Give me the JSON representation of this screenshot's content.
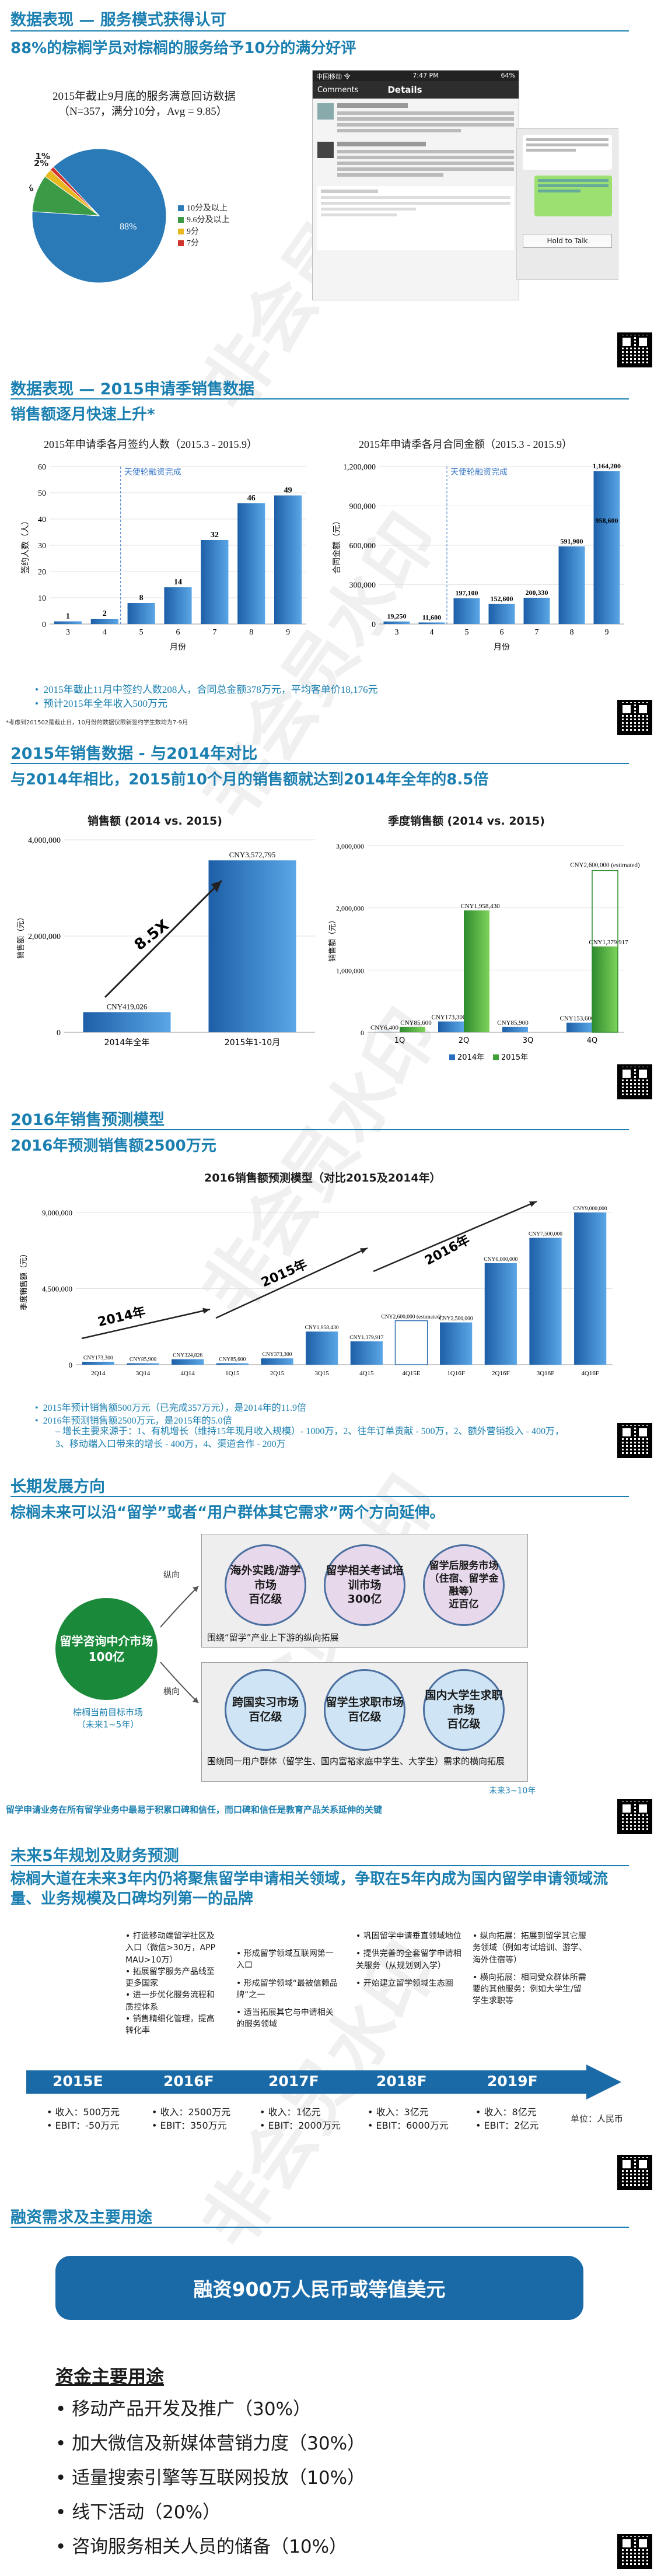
{
  "watermark": "非会员水印",
  "s1": {
    "title": "数据表现 — 服务模式获得认可",
    "subtitle": "88%的棕榈学员对棕榈的服务给予10分的满分好评",
    "pie": {
      "caption1": "2015年截止9月底的服务满意回访数据",
      "caption2": "（N=357，满分10分，Avg = 9.85）",
      "labels": [
        "88%",
        "9%",
        "2%",
        "1%"
      ],
      "legend": [
        "10分及以上",
        "9.6分及以上",
        "9分",
        "7分"
      ],
      "colors": [
        "#2a7ab8",
        "#3a9a45",
        "#e8b820",
        "#d0342c"
      ]
    },
    "phone": {
      "status_carrier": "中国移动 令",
      "status_time": "7:47 PM",
      "status_battery": "64%",
      "back": "Comments",
      "header": "Details",
      "reply_label": "Hold to Talk"
    }
  },
  "s2": {
    "title": "数据表现 — 2015申请季销售数据",
    "subtitle": "销售额逐月快速上升*",
    "chart1_title": "2015年申请季各月签约人数（2015.3 - 2015.9）",
    "chart2_title": "2015年申请季各月合同金额（2015.3 - 2015.9）",
    "marker": "天使轮融资完成",
    "ylabel1": "签约人数（人）",
    "ylabel2": "合同金额（元）",
    "xlabel": "月份",
    "bullet1": "2015年截止11月中签约人数208人，合同总金额378万元，平均客单价18,176元",
    "bullet2": "预计2015年全年收入500万元",
    "footnote": "*考虑到201502是截止日，10月份的数据仅限新签约学生数均为7-9月"
  },
  "s3": {
    "title": "2015年销售数据 - 与2014年对比",
    "subtitle": "与2014年相比，2015前10个月的销售额就达到2014年全年的8.5倍",
    "left_title": "销售额 (2014 vs. 2015)",
    "right_title": "季度销售额 (2014 vs. 2015)",
    "ylabel": "销售额（元）",
    "multiplier": "8.5X",
    "legend": [
      "2014年",
      "2015年"
    ]
  },
  "s4": {
    "title": "2016年销售预测模型",
    "subtitle": "2016年预测销售额2500万元",
    "chart_title": "2016销售额预测模型（对比2015及2014年）",
    "ylabel": "季度销售额（元）",
    "arrow_labels": [
      "2014年",
      "2015年",
      "2016年"
    ],
    "bullet1": "2015年预计销售额500万元（已完成357万元），是2014年的11.9倍",
    "bullet2": "2016年预测销售额2500万元，是2015年的5.0倍",
    "bullet3": "增长主要来源于：1、有机增长（维持15年现月收入规模）- 1000万，2、往年订单贡献 - 500万，2、额外营销投入 - 400万，3、移动端入口带来的增长 - 400万，4、渠道合作 - 200万"
  },
  "s5": {
    "title": "长期发展方向",
    "subtitle": "棕榈未来可以沿“留学”或者“用户群体其它需求”两个方向延伸。",
    "core": "留学咨询中介市场\n100亿",
    "core_caption": "棕榈当前目标市场\n（未来1~5年）",
    "vertical_label": "纵向",
    "horizontal_label": "横向",
    "top_bubbles": [
      "海外实践/游学市场\n百亿级",
      "留学相关考试培训市场\n300亿",
      "留学后服务市场（住宿、留学金融等）\n近百亿"
    ],
    "top_caption": "围绕“留学”产业上下游的纵向拓展",
    "bottom_bubbles": [
      "跨国实习市场\n百亿级",
      "留学生求职市场\n百亿级",
      "国内大学生求职市场\n百亿级"
    ],
    "bottom_caption": "围绕同一用户群体（留学生、国内富裕家庭中学生、大学生）需求的横向拓展",
    "bottom_time": "未来3~10年",
    "footer": "留学申请业务在所有留学业务中最易于积累口碑和信任，而口碑和信任是教育产品关系延伸的关键"
  },
  "s6": {
    "title": "未来5年规划及财务预测",
    "subtitle": "棕榈大道在未来3年内仍将聚焦留学申请相关领域，争取在5年内成为国内留学申请领域流量、业务规模及口碑均列第一的品牌",
    "years": [
      "2015E",
      "2016F",
      "2017F",
      "2018F",
      "2019F"
    ],
    "plans": [
      [
        "打造移动端留学社区及入口（微信>30万，APP MAU>10万）",
        "拓展留学服务产品线至更多国家",
        "进一步优化服务流程和质控体系",
        "销售精细化管理，提高转化率"
      ],
      [
        "形成留学领域互联网第一入口",
        "形成留学领域“最被信赖品牌”之一",
        "适当拓展其它与申请相关的服务领域"
      ],
      [
        "巩固留学申请垂直领域地位",
        "提供完善的全套留学申请相关服务（从规划到入学）",
        "开始建立留学领域生态圈"
      ],
      [
        "纵向拓展：拓展到留学其它服务领域（例如考试培训、游学、海外住宿等）",
        "横向拓展：相同受众群体所需要的其他服务：例如大学生/留学生求职等"
      ]
    ],
    "finance": [
      [
        "收入：500万元",
        "EBIT：-50万元"
      ],
      [
        "收入：2500万元",
        "EBIT：350万元"
      ],
      [
        "收入：1亿元",
        "EBIT：2000万元"
      ],
      [
        "收入：3亿元",
        "EBIT：6000万元"
      ],
      [
        "收入：8亿元",
        "EBIT：2亿元"
      ]
    ],
    "unit": "单位：人民币"
  },
  "s7": {
    "title": "融资需求及主要用途",
    "banner": "融资900万人民币或等值美元",
    "uses_title": "资金主要用途",
    "uses": [
      "移动产品开发及推广（30%）",
      "加大微信及新媒体营销力度（30%）",
      "适量搜索引擎等互联网投放（10%）",
      "线下活动（20%）",
      "咨询服务相关人员的储备（10%）"
    ]
  },
  "chart_data": [
    {
      "type": "pie",
      "title": "2015年截止9月底的服务满意回访数据",
      "categories": [
        "10分及以上",
        "9.6分及以上",
        "9分",
        "7分"
      ],
      "values": [
        88,
        9,
        2,
        1
      ]
    },
    {
      "type": "bar",
      "title": "2015年申请季各月签约人数（2015.3 - 2015.9）",
      "categories": [
        "3",
        "4",
        "5",
        "6",
        "7",
        "8",
        "9"
      ],
      "values": [
        1,
        2,
        8,
        14,
        32,
        46,
        49
      ],
      "xlabel": "月份",
      "ylabel": "签约人数（人）",
      "ylim": [
        0,
        60
      ]
    },
    {
      "type": "bar",
      "title": "2015年申请季各月合同金额（2015.3 - 2015.9）",
      "categories": [
        "3",
        "4",
        "5",
        "6",
        "7",
        "8",
        "9"
      ],
      "values": [
        19250,
        11600,
        197100,
        152600,
        200330,
        591900,
        1164200
      ],
      "value_labels": [
        "19,250",
        "11,600",
        "197,100",
        "152,600",
        "200,330",
        "591,900",
        "1,164,200"
      ],
      "extra_label": "958,600",
      "xlabel": "月份",
      "ylabel": "合同金额（元）",
      "ylim": [
        0,
        1200000
      ]
    },
    {
      "type": "bar",
      "title": "销售额 (2014 vs. 2015)",
      "categories": [
        "2014年全年",
        "2015年1-10月"
      ],
      "values": [
        419026,
        3572795
      ],
      "value_labels": [
        "CNY419,026",
        "CNY3,572,795"
      ],
      "ylim": [
        0,
        4000000
      ]
    },
    {
      "type": "bar",
      "title": "季度销售额 (2014 vs. 2015)",
      "categories": [
        "1Q",
        "2Q",
        "3Q",
        "4Q"
      ],
      "series": [
        {
          "name": "2014年",
          "values": [
            6400,
            173300,
            85900,
            153600
          ]
        },
        {
          "name": "2015年",
          "values": [
            85600,
            1958430,
            0,
            1379917
          ]
        }
      ],
      "labels_2014": [
        "CNY6,400",
        "CNY173,300",
        "CNY85,900",
        "CNY153,600"
      ],
      "labels_2015": [
        "CNY85,600",
        "CNY1,958,430",
        "",
        "CNY1,379,917"
      ],
      "forecast_label": "CNY2,600,000 (estimated)",
      "forecast_2015_4q": 2600000,
      "legend": [
        "2014年",
        "2015年"
      ],
      "ylim": [
        0,
        3000000
      ]
    },
    {
      "type": "bar",
      "title": "2016销售额预测模型（对比2015及2014年）",
      "categories": [
        "2Q14",
        "3Q14",
        "4Q14",
        "1Q15",
        "2Q15",
        "3Q15",
        "4Q15",
        "4Q15E",
        "1Q16F",
        "2Q16F",
        "3Q16F",
        "4Q16F"
      ],
      "values": [
        173300,
        85900,
        324826,
        85600,
        373300,
        1958430,
        1379917,
        2600000,
        2500000,
        6000000,
        7500000,
        9000000
      ],
      "value_labels": [
        "CNY173,300",
        "CNY85,900",
        "CNY324,826",
        "CNY85,600",
        "CNY373,300",
        "CNY1,958,430",
        "CNY1,379,917",
        "CNY2,600,000 (estimated)",
        "CNY2,500,000",
        "CNY6,000,000",
        "CNY7,500,000",
        "CNY9,000,000"
      ],
      "ylabel": "季度销售额（元）",
      "ylim": [
        0,
        10000000
      ]
    }
  ]
}
